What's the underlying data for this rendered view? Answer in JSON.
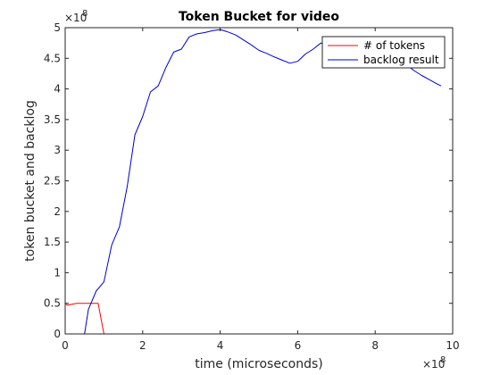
{
  "chart_data": {
    "type": "line",
    "title": "Token Bucket for video",
    "xlabel": "time (microseconds)",
    "ylabel": "token bucket and backlog",
    "x_multiplier_label": "×10",
    "x_multiplier_exp": "8",
    "y_multiplier_label": "×10",
    "y_multiplier_exp": "8",
    "xlim": [
      0,
      10
    ],
    "ylim": [
      0,
      5
    ],
    "x_ticks": [
      0,
      2,
      4,
      6,
      8,
      10
    ],
    "y_ticks": [
      0,
      0.5,
      1,
      1.5,
      2,
      2.5,
      3,
      3.5,
      4,
      4.5,
      5
    ],
    "x_tick_labels": [
      "0",
      "2",
      "4",
      "6",
      "8",
      "10"
    ],
    "y_tick_labels": [
      "0",
      "0.5",
      "1",
      "1.5",
      "2",
      "2.5",
      "3",
      "3.5",
      "4",
      "4.5",
      "5"
    ],
    "grid": false,
    "legend_position": "top-right",
    "series": [
      {
        "name": "# of tokens",
        "color": "#ff0000",
        "x": [
          0,
          0.05,
          0.3,
          0.6,
          0.85,
          1.0,
          9.7
        ],
        "y": [
          0.5,
          0.47,
          0.5,
          0.5,
          0.5,
          0.0,
          0.0
        ]
      },
      {
        "name": "backlog result",
        "color": "#0000cc",
        "x": [
          0,
          0.4,
          0.5,
          0.6,
          0.8,
          1.0,
          1.2,
          1.4,
          1.6,
          1.8,
          2.0,
          2.2,
          2.4,
          2.6,
          2.8,
          3.0,
          3.2,
          3.4,
          3.6,
          3.8,
          4.0,
          4.2,
          4.4,
          4.6,
          4.8,
          5.0,
          5.2,
          5.4,
          5.6,
          5.8,
          6.0,
          6.2,
          6.4,
          6.6,
          6.8,
          7.0,
          7.2,
          7.4,
          7.6,
          7.8,
          8.0,
          8.2,
          8.4,
          8.6,
          8.8,
          9.0,
          9.2,
          9.4,
          9.6,
          9.7
        ],
        "y": [
          0,
          0,
          0.0,
          0.4,
          0.7,
          0.85,
          1.45,
          1.75,
          2.4,
          3.25,
          3.55,
          3.95,
          4.05,
          4.35,
          4.6,
          4.65,
          4.85,
          4.9,
          4.92,
          4.95,
          4.97,
          4.93,
          4.88,
          4.8,
          4.72,
          4.63,
          4.58,
          4.52,
          4.47,
          4.42,
          4.45,
          4.57,
          4.65,
          4.75,
          4.7,
          4.63,
          4.62,
          4.68,
          4.72,
          4.65,
          4.57,
          4.53,
          4.5,
          4.45,
          4.4,
          4.3,
          4.22,
          4.15,
          4.08,
          4.05
        ]
      }
    ]
  }
}
